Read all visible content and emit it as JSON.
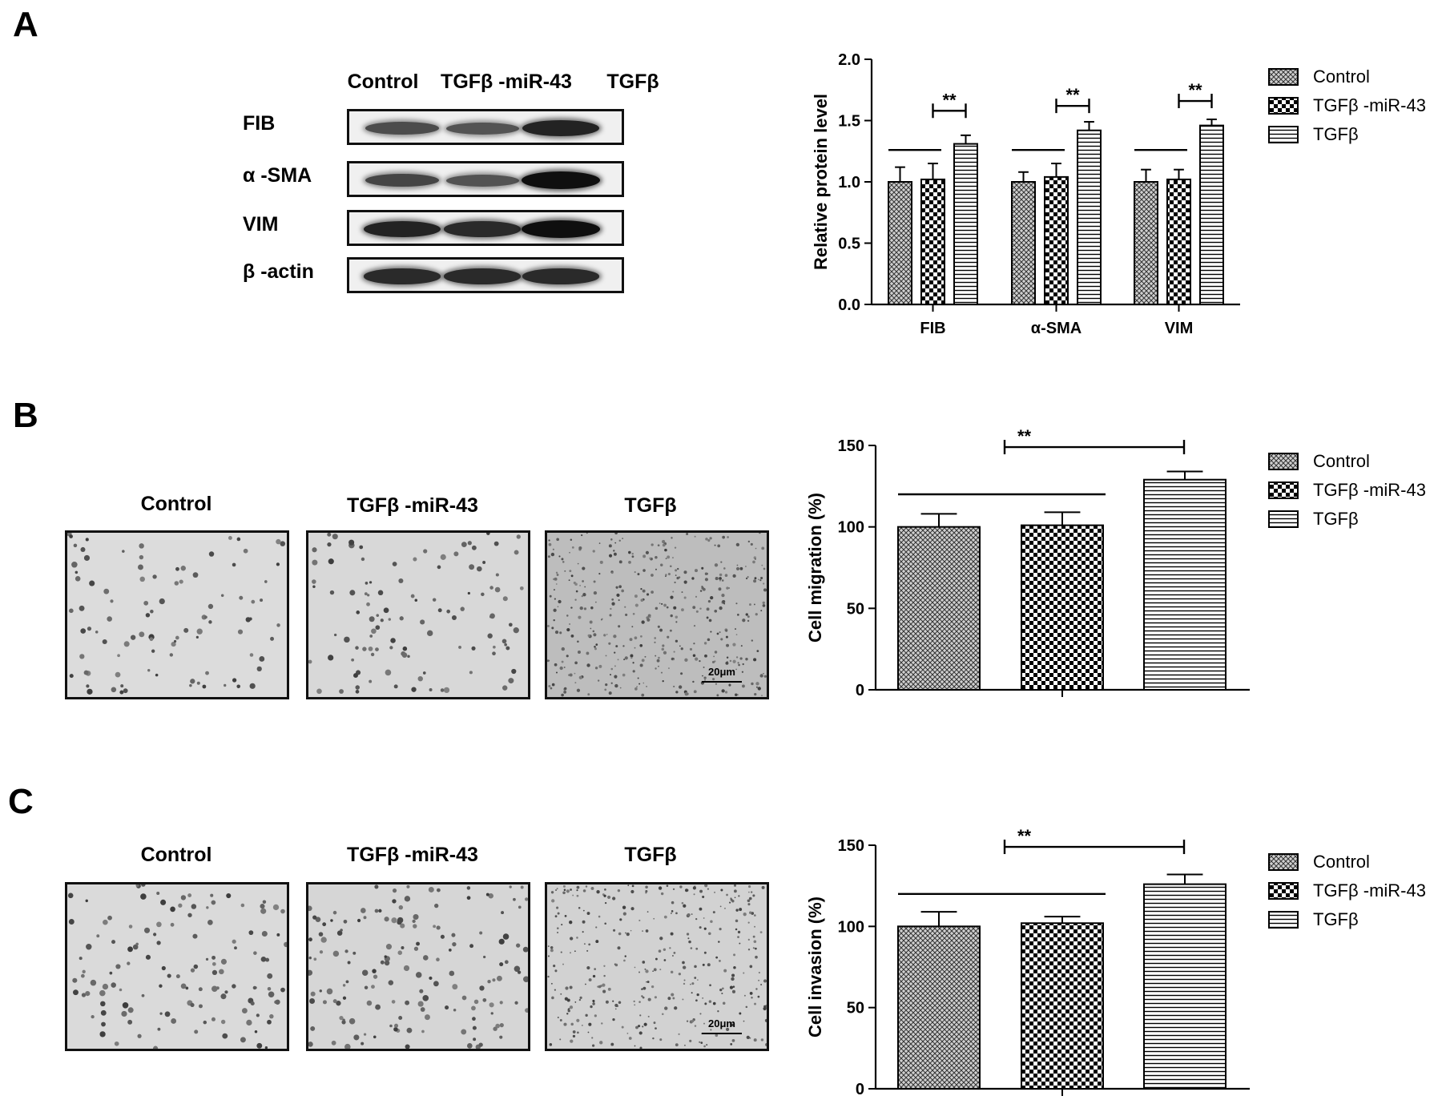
{
  "panels": {
    "a": "A",
    "b": "B",
    "c": "C"
  },
  "western_blot": {
    "columns": [
      "Control",
      "TGFβ -miR-43",
      "TGFβ"
    ],
    "rows": [
      {
        "label": "FIB",
        "band_intensity": [
          0.55,
          0.5,
          0.85
        ]
      },
      {
        "label": "α -SMA",
        "band_intensity": [
          0.6,
          0.5,
          1.0
        ]
      },
      {
        "label": "VIM",
        "band_intensity": [
          0.85,
          0.8,
          1.0
        ]
      },
      {
        "label": "β -actin",
        "band_intensity": [
          0.8,
          0.8,
          0.8
        ]
      }
    ]
  },
  "micrographs": {
    "columns": [
      "Control",
      "TGFβ -miR-43",
      "TGFβ"
    ],
    "scale_bar": "20μm"
  },
  "chart_data": [
    {
      "type": "bar",
      "ylabel": "Relative protein level",
      "categories": [
        "FIB",
        "α-SMA",
        "VIM"
      ],
      "ylim": [
        0,
        2.0
      ],
      "yticks": [
        "0.0",
        "0.5",
        "1.0",
        "1.5",
        "2.0"
      ],
      "series": [
        {
          "name": "Control",
          "values": [
            1.0,
            1.0,
            1.0
          ],
          "errors": [
            0.12,
            0.08,
            0.1
          ]
        },
        {
          "name": "TGFβ -miR-43",
          "values": [
            1.02,
            1.04,
            1.02
          ],
          "errors": [
            0.13,
            0.11,
            0.08
          ]
        },
        {
          "name": "TGFβ",
          "values": [
            1.31,
            1.42,
            1.46
          ],
          "errors": [
            0.07,
            0.07,
            0.05
          ]
        }
      ],
      "annotation": "**",
      "legend_position": "right"
    },
    {
      "type": "bar",
      "ylabel": "Cell migration (%)",
      "categories": [
        "Control",
        "TGFβ -miR-43",
        "TGFβ"
      ],
      "ylim": [
        0,
        150
      ],
      "yticks": [
        "0",
        "50",
        "100",
        "150"
      ],
      "values": [
        100,
        101,
        129
      ],
      "errors": [
        8,
        8,
        5
      ],
      "annotation": "**",
      "legend": [
        "Control",
        "TGFβ -miR-43",
        "TGFβ"
      ],
      "legend_position": "right"
    },
    {
      "type": "bar",
      "ylabel": "Cell invasion (%)",
      "categories": [
        "Control",
        "TGFβ -miR-43",
        "TGFβ"
      ],
      "ylim": [
        0,
        150
      ],
      "yticks": [
        "0",
        "50",
        "100",
        "150"
      ],
      "values": [
        100,
        102,
        126
      ],
      "errors": [
        9,
        4,
        6
      ],
      "annotation": "**",
      "legend": [
        "Control",
        "TGFβ -miR-43",
        "TGFβ"
      ],
      "legend_position": "right"
    }
  ]
}
